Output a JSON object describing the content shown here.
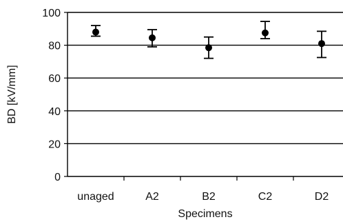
{
  "chart_data": {
    "type": "scatter",
    "categories": [
      "unaged",
      "A2",
      "B2",
      "C2",
      "D2"
    ],
    "values": [
      88,
      84.5,
      78.5,
      87.5,
      81
    ],
    "error_low": [
      85.5,
      79,
      72,
      84,
      72.5
    ],
    "error_high": [
      92,
      89.5,
      85,
      94.5,
      88.5
    ],
    "xlabel": "Specimens",
    "ylabel": "BD [kV/mm]",
    "ylim": [
      0,
      100
    ],
    "yticks": [
      0,
      20,
      40,
      60,
      80,
      100
    ],
    "grid": true,
    "marker_color": "#000000"
  }
}
